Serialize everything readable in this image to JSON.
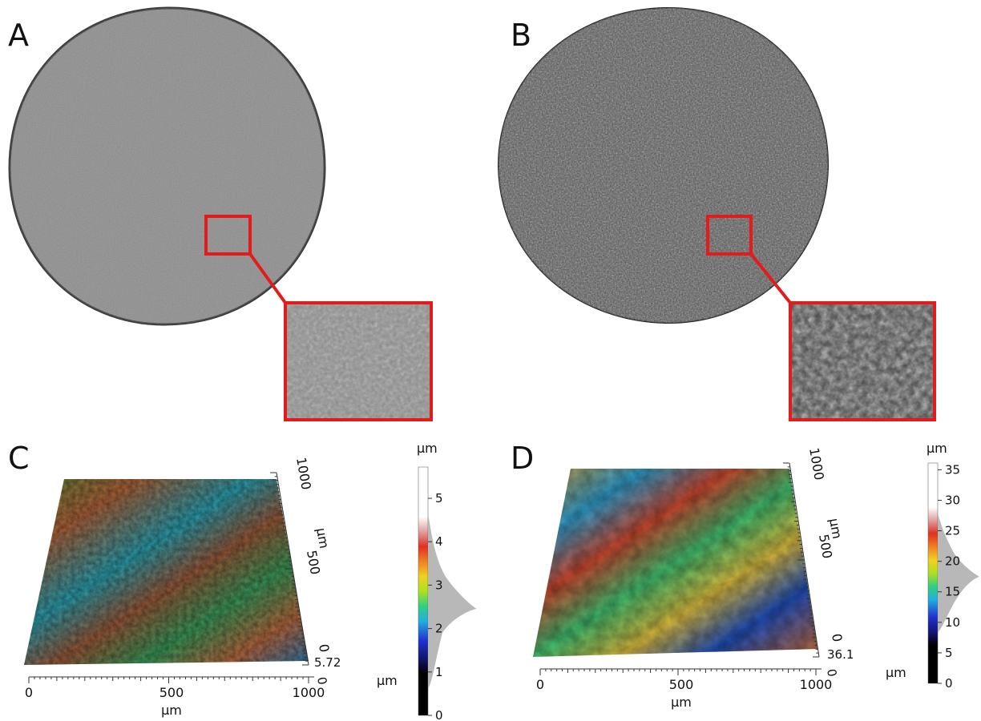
{
  "panels": {
    "a": {
      "letter": "A"
    },
    "b": {
      "letter": "B"
    },
    "c": {
      "letter": "C",
      "x_axis": {
        "ticks": [
          "0",
          "500",
          "1000"
        ],
        "unit": "µm"
      },
      "y_axis": {
        "ticks": [
          "1000",
          "500",
          "0"
        ],
        "unit": "µm"
      },
      "z_axis": {
        "value": "5.72",
        "zero": "0"
      },
      "colorbar": {
        "unit": "µm",
        "ticks": [
          "0",
          "1",
          "2",
          "3",
          "4",
          "5"
        ],
        "side_unit": "µm",
        "range": [
          0,
          5.72
        ]
      }
    },
    "d": {
      "letter": "D",
      "x_axis": {
        "ticks": [
          "0",
          "500",
          "1000"
        ],
        "unit": "µm"
      },
      "y_axis": {
        "ticks": [
          "1000",
          "500",
          "0"
        ],
        "unit": "µm"
      },
      "z_axis": {
        "value": "36.1",
        "zero": "0"
      },
      "colorbar": {
        "unit": "µm",
        "ticks": [
          "0",
          "5",
          "10",
          "15",
          "20",
          "25",
          "30",
          "35"
        ],
        "side_unit": "µm",
        "range": [
          0,
          36.1
        ]
      }
    }
  },
  "colors": {
    "highlight": "#e31b1b",
    "disc_a": "#8a8a8a",
    "disc_b": "#5a5a5a",
    "histogram": "#b8b8b8"
  }
}
